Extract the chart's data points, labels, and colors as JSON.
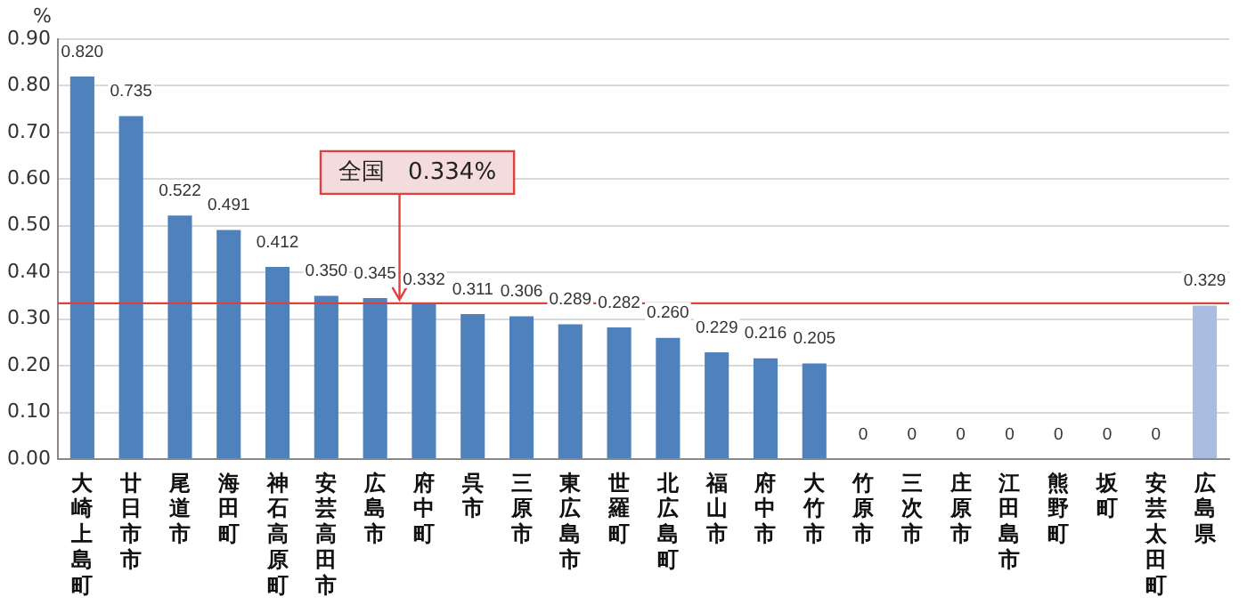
{
  "chart_data": {
    "type": "bar",
    "ylabel": "%",
    "categories": [
      "大崎上島町",
      "廿日市市",
      "尾道市",
      "海田町",
      "神石高原町",
      "安芸高田市",
      "広島市",
      "府中町",
      "呉市",
      "三原市",
      "東広島市",
      "世羅町",
      "北広島町",
      "福山市",
      "府中市",
      "大竹市",
      "竹原市",
      "三次市",
      "庄原市",
      "江田島市",
      "熊野町",
      "坂町",
      "安芸太田町",
      "広島県"
    ],
    "values": [
      0.82,
      0.735,
      0.522,
      0.491,
      0.412,
      0.35,
      0.345,
      0.332,
      0.311,
      0.306,
      0.289,
      0.282,
      0.26,
      0.229,
      0.216,
      0.205,
      0,
      0,
      0,
      0,
      0,
      0,
      0,
      0.329
    ],
    "value_labels": [
      "0.820",
      "0.735",
      "0.522",
      "0.491",
      "0.412",
      "0.350",
      "0.345",
      "0.332",
      "0.311",
      "0.306",
      "0.289",
      "0.282",
      "0.260",
      "0.229",
      "0.216",
      "0.205",
      "0",
      "0",
      "0",
      "0",
      "0",
      "0",
      "0",
      "0.329"
    ],
    "colors": [
      "#4f81bd",
      "#4f81bd",
      "#4f81bd",
      "#4f81bd",
      "#4f81bd",
      "#4f81bd",
      "#4f81bd",
      "#4f81bd",
      "#4f81bd",
      "#4f81bd",
      "#4f81bd",
      "#4f81bd",
      "#4f81bd",
      "#4f81bd",
      "#4f81bd",
      "#4f81bd",
      "#4f81bd",
      "#4f81bd",
      "#4f81bd",
      "#4f81bd",
      "#4f81bd",
      "#4f81bd",
      "#4f81bd",
      "#a9bde0"
    ],
    "ylim": [
      0,
      0.9
    ],
    "yticks": [
      {
        "value": 0,
        "label": "0.00"
      },
      {
        "value": 0.1,
        "label": "0.10"
      },
      {
        "value": 0.2,
        "label": "0.20"
      },
      {
        "value": 0.3,
        "label": "0.30"
      },
      {
        "value": 0.4,
        "label": "0.40"
      },
      {
        "value": 0.5,
        "label": "0.50"
      },
      {
        "value": 0.6,
        "label": "0.60"
      },
      {
        "value": 0.7,
        "label": "0.70"
      },
      {
        "value": 0.8,
        "label": "0.80"
      },
      {
        "value": 0.9,
        "label": "0.90"
      }
    ],
    "ref_lines": [
      {
        "axis": "y",
        "value": 0.334,
        "label": "全国　0.334%",
        "color": "#e0403c"
      }
    ],
    "grid": "y",
    "legend": false
  }
}
